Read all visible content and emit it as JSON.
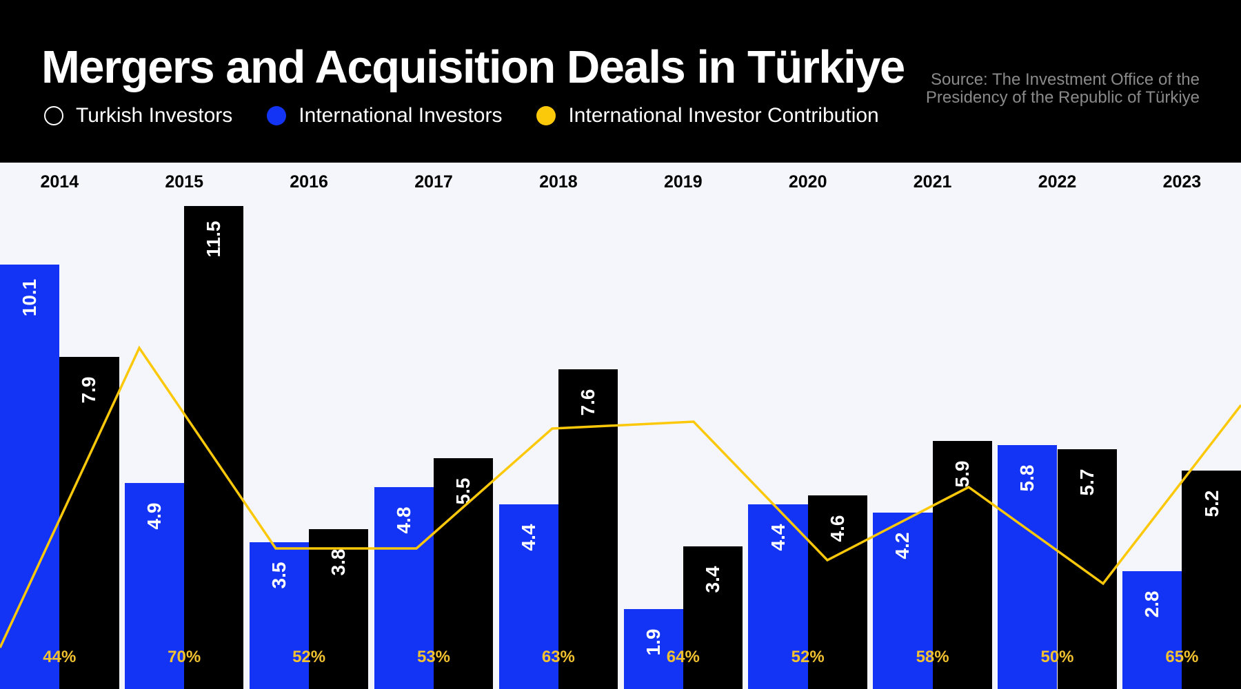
{
  "header": {
    "title": "Mergers and Acquisition Deals in Türkiye",
    "source": "Source: The Investment Office of the Presidency of the Republic of Türkiye",
    "legend": [
      {
        "label": "Turkish Investors",
        "swatch": "outline-white"
      },
      {
        "label": "International Investors",
        "swatch": "#1434f5"
      },
      {
        "label": "International Investor Contribution",
        "swatch": "#fcc80a"
      }
    ]
  },
  "colors": {
    "header_bg": "#000000",
    "plot_bg": "#f4f6fc",
    "blue_bar": "#1434f5",
    "black_bar": "#000000",
    "line": "#fcc80a",
    "pct_text": "#f2c230"
  },
  "chart_data": {
    "type": "bar",
    "title": "Mergers and Acquisition Deals in Türkiye",
    "xlabel": "",
    "ylabel": "",
    "categories": [
      "2014",
      "2015",
      "2016",
      "2017",
      "2018",
      "2019",
      "2020",
      "2021",
      "2022",
      "2023"
    ],
    "series": [
      {
        "name": "Blue bars",
        "color": "#1434f5",
        "values": [
          10.1,
          4.9,
          3.5,
          4.8,
          4.4,
          1.9,
          4.4,
          4.2,
          5.8,
          2.8
        ]
      },
      {
        "name": "Black bars",
        "color": "#000000",
        "values": [
          7.9,
          11.5,
          3.8,
          5.5,
          7.6,
          3.4,
          4.6,
          5.9,
          5.7,
          5.2
        ]
      },
      {
        "name": "International Investor Contribution",
        "type": "line",
        "color": "#fcc80a",
        "values": [
          44,
          70,
          52,
          53,
          63,
          64,
          52,
          58,
          50,
          65
        ],
        "unit": "%"
      }
    ],
    "percent_labels": [
      "44%",
      "70%",
      "52%",
      "53%",
      "63%",
      "64%",
      "52%",
      "58%",
      "50%",
      "65%"
    ],
    "legend": [
      "Turkish Investors",
      "International Investors",
      "International Investor Contribution"
    ],
    "legend_position": "top-left",
    "grid": false,
    "source": "Source: The Investment Office of the Presidency of the Republic of Türkiye"
  }
}
